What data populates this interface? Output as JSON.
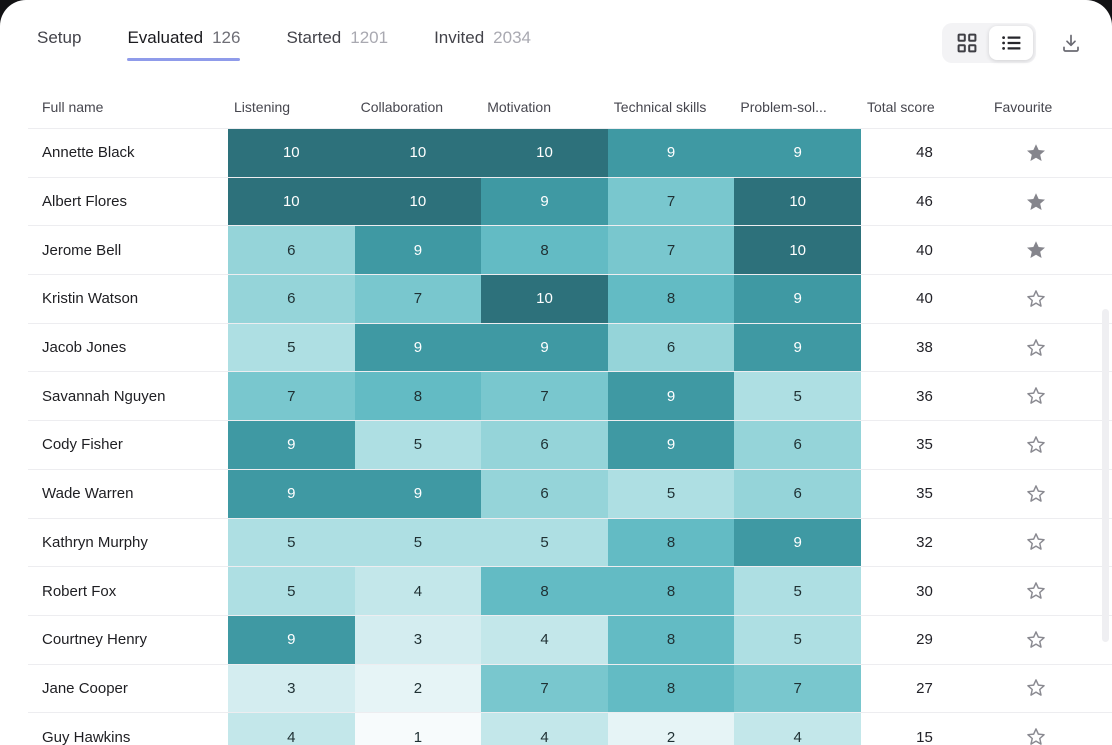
{
  "tabs": [
    {
      "label": "Setup",
      "count": ""
    },
    {
      "label": "Evaluated",
      "count": "126"
    },
    {
      "label": "Started",
      "count": "1201"
    },
    {
      "label": "Invited",
      "count": "2034"
    }
  ],
  "active_tab": "Evaluated",
  "toolbar": {
    "view_toggle": {
      "options": [
        "grid-view",
        "list-view"
      ],
      "selected": "list-view"
    },
    "download": "download"
  },
  "colors": {
    "accent_underline": "#8F9BEA",
    "heatmap": {
      "1": "#F7FBFC",
      "2": "#E6F4F6",
      "3": "#D4EDF0",
      "4": "#C3E7EA",
      "5": "#AEDFE3",
      "6": "#95D4D9",
      "7": "#79C7CE",
      "8": "#63BBC4",
      "9": "#3F99A3",
      "10": "#2D717B"
    },
    "cell_text_dark": "#1F3033",
    "cell_text_light": "#FFFFFF",
    "star_gray": "#85858C"
  },
  "table": {
    "columns": [
      "Full name",
      "Listening",
      "Collaboration",
      "Motivation",
      "Technical skills",
      "Problem-sol...",
      "Total score",
      "Favourite"
    ],
    "rows": [
      {
        "name": "Annette Black",
        "scores": [
          10,
          10,
          10,
          9,
          9
        ],
        "total": 48,
        "favourite": true
      },
      {
        "name": "Albert Flores",
        "scores": [
          10,
          10,
          9,
          7,
          10
        ],
        "total": 46,
        "favourite": true
      },
      {
        "name": "Jerome Bell",
        "scores": [
          6,
          9,
          8,
          7,
          10
        ],
        "total": 40,
        "favourite": true
      },
      {
        "name": "Kristin Watson",
        "scores": [
          6,
          7,
          10,
          8,
          9
        ],
        "total": 40,
        "favourite": false
      },
      {
        "name": "Jacob Jones",
        "scores": [
          5,
          9,
          9,
          6,
          9
        ],
        "total": 38,
        "favourite": false
      },
      {
        "name": "Savannah Nguyen",
        "scores": [
          7,
          8,
          7,
          9,
          5
        ],
        "total": 36,
        "favourite": false
      },
      {
        "name": "Cody Fisher",
        "scores": [
          9,
          5,
          6,
          9,
          6
        ],
        "total": 35,
        "favourite": false
      },
      {
        "name": "Wade Warren",
        "scores": [
          9,
          9,
          6,
          5,
          6
        ],
        "total": 35,
        "favourite": false
      },
      {
        "name": "Kathryn Murphy",
        "scores": [
          5,
          5,
          5,
          8,
          9
        ],
        "total": 32,
        "favourite": false
      },
      {
        "name": "Robert Fox",
        "scores": [
          5,
          4,
          8,
          8,
          5
        ],
        "total": 30,
        "favourite": false
      },
      {
        "name": "Courtney Henry",
        "scores": [
          9,
          3,
          4,
          8,
          5
        ],
        "total": 29,
        "favourite": false
      },
      {
        "name": "Jane Cooper",
        "scores": [
          3,
          2,
          7,
          8,
          7
        ],
        "total": 27,
        "favourite": false
      },
      {
        "name": "Guy Hawkins",
        "scores": [
          4,
          1,
          4,
          2,
          4
        ],
        "total": 15,
        "favourite": false
      }
    ]
  }
}
